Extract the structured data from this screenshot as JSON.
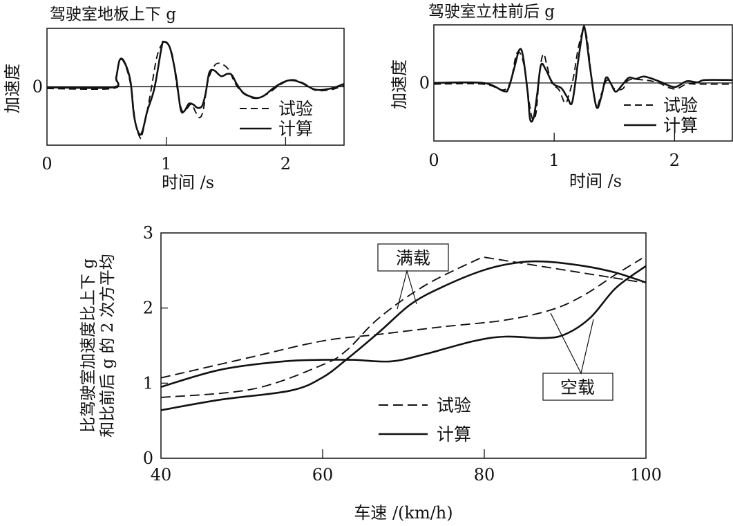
{
  "colors": {
    "ink": "#111111",
    "background": "#ffffff"
  },
  "chart_data": [
    {
      "type": "line",
      "title": "驾驶室地板上下 g",
      "xlabel": "时间 /s",
      "ylabel": "加速度",
      "xlim": [
        0,
        2.49
      ],
      "ylim": [
        -1,
        1
      ],
      "xticks": [
        "0",
        "1",
        "2"
      ],
      "xtick_values": [
        0,
        1,
        2
      ],
      "yticks": [
        "0"
      ],
      "ytick_values": [
        0
      ],
      "legend": {
        "position": "bottom-right",
        "entries": [
          "试验",
          "计算"
        ]
      },
      "series": [
        {
          "name": "试验",
          "style": "dashed",
          "points": [
            [
              0,
              -0.03
            ],
            [
              0.55,
              -0.03
            ],
            [
              0.58,
              0.14
            ],
            [
              0.61,
              0.45
            ],
            [
              0.65,
              0.4
            ],
            [
              0.7,
              0.05
            ],
            [
              0.74,
              -0.6
            ],
            [
              0.78,
              -0.87
            ],
            [
              0.8,
              -0.8
            ],
            [
              0.86,
              -0.2
            ],
            [
              0.92,
              0.5
            ],
            [
              0.97,
              0.75
            ],
            [
              1.0,
              0.77
            ],
            [
              1.05,
              0.55
            ],
            [
              1.09,
              0.0
            ],
            [
              1.13,
              -0.4
            ],
            [
              1.17,
              -0.38
            ],
            [
              1.21,
              -0.3
            ],
            [
              1.25,
              -0.45
            ],
            [
              1.28,
              -0.53
            ],
            [
              1.31,
              -0.4
            ],
            [
              1.35,
              0.1
            ],
            [
              1.4,
              0.35
            ],
            [
              1.45,
              0.4
            ],
            [
              1.52,
              0.3
            ],
            [
              1.58,
              0.05
            ],
            [
              1.65,
              -0.12
            ],
            [
              1.75,
              -0.2
            ],
            [
              1.85,
              -0.12
            ],
            [
              1.95,
              0.03
            ],
            [
              2.05,
              0.12
            ],
            [
              2.15,
              0.06
            ],
            [
              2.25,
              -0.06
            ],
            [
              2.38,
              -0.05
            ],
            [
              2.49,
              0.02
            ]
          ]
        },
        {
          "name": "计算",
          "style": "solid",
          "points": [
            [
              0,
              -0.01
            ],
            [
              0.55,
              -0.01
            ],
            [
              0.58,
              0.16
            ],
            [
              0.61,
              0.46
            ],
            [
              0.65,
              0.42
            ],
            [
              0.7,
              0.09
            ],
            [
              0.73,
              -0.5
            ],
            [
              0.77,
              -0.8
            ],
            [
              0.8,
              -0.76
            ],
            [
              0.84,
              -0.42
            ],
            [
              0.9,
              -0.03
            ],
            [
              0.96,
              0.67
            ],
            [
              0.98,
              0.77
            ],
            [
              1.03,
              0.67
            ],
            [
              1.08,
              0.2
            ],
            [
              1.12,
              -0.38
            ],
            [
              1.15,
              -0.42
            ],
            [
              1.19,
              -0.29
            ],
            [
              1.23,
              -0.31
            ],
            [
              1.26,
              -0.36
            ],
            [
              1.3,
              -0.33
            ],
            [
              1.33,
              -0.11
            ],
            [
              1.36,
              0.24
            ],
            [
              1.4,
              0.28
            ],
            [
              1.46,
              0.18
            ],
            [
              1.51,
              0.22
            ],
            [
              1.55,
              0.2
            ],
            [
              1.59,
              0.05
            ],
            [
              1.65,
              -0.11
            ],
            [
              1.75,
              -0.19
            ],
            [
              1.82,
              -0.15
            ],
            [
              1.92,
              0.01
            ],
            [
              2.03,
              0.11
            ],
            [
              2.13,
              0.07
            ],
            [
              2.25,
              -0.05
            ],
            [
              2.38,
              -0.03
            ],
            [
              2.49,
              0.05
            ]
          ]
        }
      ]
    },
    {
      "type": "line",
      "title": "驾驶室立柱前后 g",
      "xlabel": "时间 /s",
      "ylabel": "加速度",
      "xlim": [
        0,
        2.48
      ],
      "ylim": [
        -1,
        1
      ],
      "xticks": [
        "0",
        "1",
        "2"
      ],
      "xtick_values": [
        0,
        1,
        2
      ],
      "yticks": [
        "0"
      ],
      "ytick_values": [
        0
      ],
      "legend": {
        "position": "bottom-right",
        "entries": [
          "试验",
          "计算"
        ]
      },
      "series": [
        {
          "name": "试验",
          "style": "dashed",
          "points": [
            [
              0,
              -0.02
            ],
            [
              0.41,
              -0.02
            ],
            [
              0.58,
              -0.12
            ],
            [
              0.64,
              0.05
            ],
            [
              0.68,
              0.45
            ],
            [
              0.71,
              0.53
            ],
            [
              0.75,
              0.3
            ],
            [
              0.79,
              -0.3
            ],
            [
              0.82,
              -0.62
            ],
            [
              0.85,
              -0.5
            ],
            [
              0.88,
              0.2
            ],
            [
              0.91,
              0.5
            ],
            [
              0.94,
              0.3
            ],
            [
              0.98,
              0.0
            ],
            [
              1.04,
              -0.12
            ],
            [
              1.09,
              -0.35
            ],
            [
              1.12,
              -0.22
            ],
            [
              1.16,
              0.1
            ],
            [
              1.2,
              0.6
            ],
            [
              1.24,
              0.9
            ],
            [
              1.27,
              0.8
            ],
            [
              1.31,
              0.1
            ],
            [
              1.35,
              -0.4
            ],
            [
              1.39,
              -0.2
            ],
            [
              1.44,
              0.05
            ],
            [
              1.5,
              -0.1
            ],
            [
              1.57,
              -0.1
            ],
            [
              1.62,
              0.05
            ],
            [
              1.75,
              0.05
            ],
            [
              1.87,
              0.0
            ],
            [
              1.95,
              -0.08
            ],
            [
              2.02,
              -0.1
            ],
            [
              2.1,
              -0.02
            ],
            [
              2.2,
              -0.02
            ],
            [
              2.48,
              -0.02
            ]
          ]
        },
        {
          "name": "计算",
          "style": "solid",
          "points": [
            [
              0,
              0
            ],
            [
              0.41,
              0
            ],
            [
              0.58,
              -0.14
            ],
            [
              0.62,
              -0.09
            ],
            [
              0.67,
              0.27
            ],
            [
              0.71,
              0.57
            ],
            [
              0.74,
              0.47
            ],
            [
              0.78,
              -0.17
            ],
            [
              0.8,
              -0.63
            ],
            [
              0.83,
              -0.59
            ],
            [
              0.86,
              -0.17
            ],
            [
              0.89,
              0.31
            ],
            [
              0.93,
              0.23
            ],
            [
              0.99,
              -0.01
            ],
            [
              1.06,
              -0.09
            ],
            [
              1.11,
              -0.25
            ],
            [
              1.15,
              -0.33
            ],
            [
              1.2,
              0.39
            ],
            [
              1.24,
              0.93
            ],
            [
              1.26,
              0.87
            ],
            [
              1.3,
              0.23
            ],
            [
              1.35,
              -0.41
            ],
            [
              1.39,
              -0.25
            ],
            [
              1.43,
              0.09
            ],
            [
              1.47,
              -0.01
            ],
            [
              1.51,
              -0.15
            ],
            [
              1.56,
              -0.05
            ],
            [
              1.62,
              0.09
            ],
            [
              1.68,
              0.07
            ],
            [
              1.75,
              0.11
            ],
            [
              1.87,
              0.03
            ],
            [
              2.0,
              -0.07
            ],
            [
              2.1,
              0.03
            ],
            [
              2.19,
              0.01
            ],
            [
              2.25,
              0.05
            ],
            [
              2.48,
              0.05
            ]
          ]
        }
      ]
    },
    {
      "type": "line",
      "title": "",
      "xlabel": "车速 /(km/h)",
      "ylabel_lines": [
        "比驾驶室加速度比上下 g",
        "和比前后 g 的 2 次方平均"
      ],
      "xlim": [
        40,
        100
      ],
      "ylim": [
        0,
        3
      ],
      "xticks": [
        "40",
        "60",
        "80",
        "100"
      ],
      "xtick_values": [
        40,
        60,
        80,
        100
      ],
      "yticks": [
        "0",
        "1",
        "2",
        "3"
      ],
      "ytick_values": [
        0,
        1,
        2,
        3
      ],
      "legend": {
        "position": "bottom-center",
        "entries": [
          "试验",
          "计算"
        ]
      },
      "annotations": [
        "满载",
        "空载"
      ],
      "series": [
        {
          "name": "满载 试验",
          "style": "dashed",
          "points": [
            [
              40,
              0.81
            ],
            [
              51.3,
              0.92
            ],
            [
              59.9,
              1.24
            ],
            [
              63,
              1.44
            ],
            [
              67,
              1.87
            ],
            [
              72.8,
              2.31
            ],
            [
              79.8,
              2.68
            ],
            [
              99.6,
              2.34
            ]
          ]
        },
        {
          "name": "满载 计算",
          "style": "solid",
          "points": [
            [
              40,
              0.64
            ],
            [
              47.4,
              0.78
            ],
            [
              56,
              0.9
            ],
            [
              59.9,
              1.07
            ],
            [
              63,
              1.32
            ],
            [
              67,
              1.68
            ],
            [
              70.9,
              2.05
            ],
            [
              74.8,
              2.28
            ],
            [
              79.8,
              2.5
            ],
            [
              83.8,
              2.6
            ],
            [
              87.3,
              2.62
            ],
            [
              92.3,
              2.56
            ],
            [
              96.3,
              2.47
            ],
            [
              100,
              2.34
            ]
          ]
        },
        {
          "name": "空载 试验",
          "style": "dashed",
          "points": [
            [
              40,
              1.07
            ],
            [
              51.3,
              1.35
            ],
            [
              59.9,
              1.56
            ],
            [
              67,
              1.65
            ],
            [
              74.8,
              1.75
            ],
            [
              82.6,
              1.84
            ],
            [
              88.4,
              1.98
            ],
            [
              92.3,
              2.17
            ],
            [
              96.3,
              2.45
            ],
            [
              99.5,
              2.66
            ]
          ]
        },
        {
          "name": "空载 计算",
          "style": "solid",
          "points": [
            [
              40,
              0.95
            ],
            [
              47.4,
              1.18
            ],
            [
              55.2,
              1.29
            ],
            [
              59.9,
              1.31
            ],
            [
              63.8,
              1.31
            ],
            [
              68.5,
              1.29
            ],
            [
              72.8,
              1.39
            ],
            [
              78.7,
              1.56
            ],
            [
              82.6,
              1.62
            ],
            [
              87.3,
              1.6
            ],
            [
              90,
              1.65
            ],
            [
              93.1,
              1.87
            ],
            [
              96.3,
              2.27
            ],
            [
              100,
              2.56
            ]
          ]
        }
      ]
    }
  ]
}
